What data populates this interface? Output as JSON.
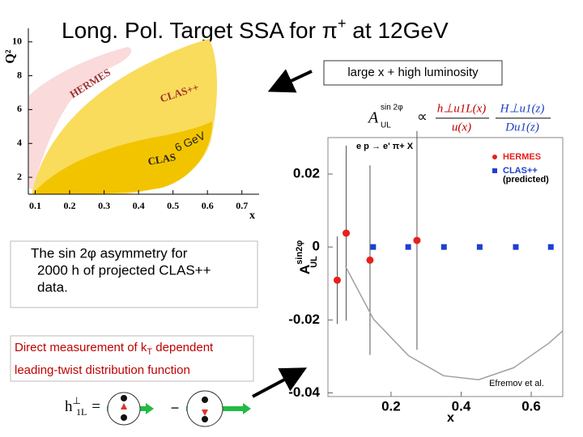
{
  "title": {
    "main": "Long. Pol. Target SSA for π",
    "sup": "+",
    "tail": " at 12GeV"
  },
  "callout": "large x  +  high luminosity",
  "note": {
    "line1": "The sin 2φ  asymmetry for",
    "line2": "2000 h of  projected CLAS++",
    "line3": "data."
  },
  "highlight": {
    "line1": "Direct measurement of k",
    "sub": "T",
    "line1_tail": " dependent",
    "line2": "leading-twist distribution function"
  },
  "diagram": {
    "lhs": "h",
    "lhs_sup": "⊥",
    "lhs_sub": "1L",
    "eq": "=",
    "minus": "−"
  },
  "formula": {
    "lhs": "A",
    "lhs_sup": "sin 2φ",
    "lhs_sub": "UL",
    "prop": "∝",
    "num1": "h⊥u1L(x)",
    "den1": "u(x)",
    "num2": "H⊥u1(z)",
    "den2": "Du1(z)"
  },
  "chart_data": [
    {
      "type": "coverage",
      "x_label": "x",
      "y_label": "Q²",
      "xlim": [
        0.08,
        0.75
      ],
      "ylim": [
        1,
        10.8
      ],
      "xticks": [
        0.1,
        0.2,
        0.3,
        0.4,
        0.5,
        0.6,
        0.7
      ],
      "yticks": [
        2,
        4,
        6,
        8,
        10
      ],
      "region_labels": [
        "HERMES",
        "CLAS++",
        "CLAS",
        "6 GeV"
      ]
    },
    {
      "type": "scatter",
      "header": "e p → e' π+ X",
      "x_label": "x",
      "y_label": "A",
      "y_label_sup": "sin2φ",
      "y_label_sub": "UL",
      "annotation": "Efremov et al.",
      "xlim": [
        0.02,
        0.69
      ],
      "ylim": [
        -0.041,
        0.03
      ],
      "xticks": [
        0.2,
        0.4,
        0.6
      ],
      "yticks": [
        0.02,
        0,
        -0.02,
        -0.04
      ],
      "series": [
        {
          "name": "HERMES",
          "color": "#e8201c",
          "mode": "markers",
          "x": [
            0.0465,
            0.072,
            0.14,
            0.274
          ],
          "values": [
            -0.0091,
            0.0038,
            -0.0036,
            0.0018
          ],
          "errors": [
            0.012,
            0.024,
            0.026,
            0.03
          ]
        },
        {
          "name": "CLAS++",
          "name_note": "(predicted)",
          "color": "#1f3fd0",
          "mode": "squares",
          "x": [
            0.149,
            0.249,
            0.351,
            0.453,
            0.556,
            0.656
          ],
          "values": [
            0,
            0,
            0,
            0,
            0,
            0
          ]
        },
        {
          "color": "#a0a0a0",
          "mode": "line",
          "x": [
            0.07,
            0.15,
            0.25,
            0.35,
            0.45,
            0.55,
            0.65,
            0.69
          ],
          "values": [
            -0.0053,
            -0.0198,
            -0.0298,
            -0.0353,
            -0.0364,
            -0.0331,
            -0.0264,
            -0.023
          ]
        }
      ]
    }
  ]
}
